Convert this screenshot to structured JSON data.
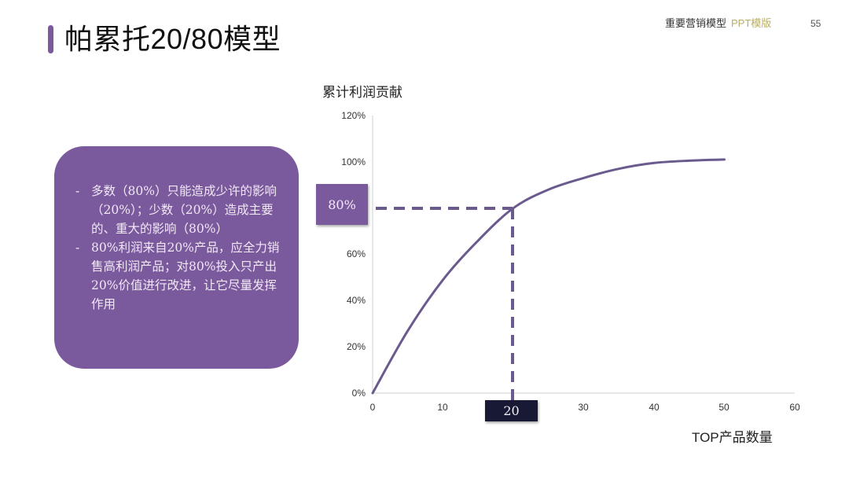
{
  "header": {
    "title": "帕累托20/80模型",
    "brand": "重要营销模型",
    "brand_sub": "PPT模版",
    "page_number": "55"
  },
  "note": {
    "items": [
      {
        "dash": "-",
        "text": "多数（80%）只能造成少许的影响（20%）；少数（20%）造成主要的、重大的影响（80%）"
      },
      {
        "dash": "-",
        "text": "80%利润来自20%产品，应全力销售高利润产品；对80%投入只产出20%价值进行改进，让它尽量发挥作用"
      }
    ]
  },
  "colors": {
    "accent": "#7a5a9c",
    "curve": "#6b5a8e",
    "dark_callout": "#181a35",
    "brand_sub": "#b7ae62",
    "axis": "#cccccc"
  },
  "chart_data": {
    "type": "line",
    "title": "",
    "xlabel": "TOP产品数量",
    "ylabel": "累计利润贡献",
    "xlim": [
      0,
      60
    ],
    "ylim": [
      0,
      120
    ],
    "x_ticks": [
      "0",
      "10",
      "20",
      "30",
      "40",
      "50",
      "60"
    ],
    "y_ticks": [
      "0%",
      "20%",
      "40%",
      "60%",
      "80%",
      "100%",
      "120%"
    ],
    "grid": false,
    "legend": "none",
    "series": [
      {
        "name": "累计利润贡献",
        "x": [
          0,
          5,
          10,
          15,
          20,
          25,
          30,
          35,
          40,
          45,
          50
        ],
        "y": [
          0,
          27,
          49,
          66,
          80,
          88,
          93,
          97,
          99.5,
          100.5,
          101
        ]
      }
    ],
    "annotations": [
      {
        "type": "hline-dashed",
        "y": 80,
        "x_from": 0,
        "x_to": 20,
        "label": "80%"
      },
      {
        "type": "vline-dashed",
        "x": 20,
        "y_from": 0,
        "y_to": 80,
        "label": "20"
      }
    ]
  }
}
